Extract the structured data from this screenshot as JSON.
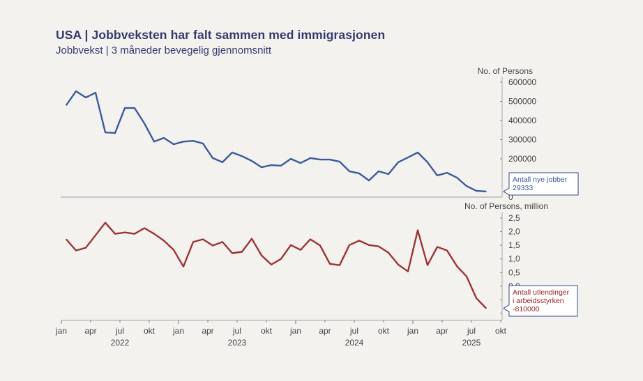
{
  "title": "USA | Jobbveksten har falt sammen med immigrasjonen",
  "subtitle": "Jobbvekst | 3 måneder bevegelig gjennomsnitt",
  "chart_data": [
    {
      "type": "line",
      "panel": "top",
      "ylabel": "No. of Persons",
      "ylim": [
        0,
        600000
      ],
      "yticks": [
        0,
        200000,
        300000,
        400000,
        500000,
        600000
      ],
      "ytick_labels": [
        "0",
        "200000",
        "300000",
        "400000",
        "500000",
        "600000"
      ],
      "color": "#3a5a99",
      "series": [
        {
          "name": "Antall nye jobber",
          "start": "2022-01",
          "values": [
            480000,
            553000,
            520000,
            545000,
            338000,
            335000,
            465000,
            465000,
            385000,
            290000,
            309000,
            276000,
            290000,
            294000,
            280000,
            204000,
            182000,
            233000,
            214000,
            189000,
            156000,
            167000,
            164000,
            200000,
            178000,
            204000,
            196000,
            196000,
            185000,
            135000,
            124000,
            87000,
            135000,
            120000,
            182000,
            207000,
            233000,
            182000,
            113000,
            127000,
            102000,
            58000,
            33000,
            29333
          ]
        }
      ],
      "annotation": {
        "lines": [
          "Antall nye jobber",
          "29333"
        ],
        "color": "#3a5a99"
      }
    },
    {
      "type": "line",
      "panel": "bottom",
      "ylabel": "No. of Persons, million",
      "ylim": [
        -1.0,
        2.5
      ],
      "yticks": [
        -1.0,
        -0.5,
        0.0,
        0.5,
        1.0,
        1.5,
        2.0,
        2.5
      ],
      "ytick_labels": [
        "",
        "",
        "0,0",
        "0,5",
        "1,0",
        "1,5",
        "2,0",
        "2,5"
      ],
      "color": "#9b3535",
      "series": [
        {
          "name": "Antall utlendinger i arbeidsstyrken",
          "start": "2022-01",
          "values": [
            1.72,
            1.31,
            1.41,
            1.87,
            2.33,
            1.92,
            1.97,
            1.92,
            2.13,
            1.92,
            1.67,
            1.33,
            0.72,
            1.62,
            1.72,
            1.49,
            1.62,
            1.21,
            1.26,
            1.74,
            1.13,
            0.79,
            1.0,
            1.51,
            1.33,
            1.72,
            1.49,
            0.82,
            0.77,
            1.51,
            1.67,
            1.51,
            1.46,
            1.23,
            0.79,
            0.54,
            2.05,
            0.77,
            1.44,
            1.31,
            0.74,
            0.36,
            -0.44,
            -0.81
          ]
        }
      ],
      "annotation": {
        "lines": [
          "Antall utlendinger",
          "i arbeidsstyrken",
          "-810000"
        ],
        "color": "#9b2020"
      }
    }
  ],
  "xaxis": {
    "month_labels": [
      "jan",
      "apr",
      "jul",
      "okt",
      "jan",
      "apr",
      "jul",
      "okt",
      "jan",
      "apr",
      "jul",
      "okt",
      "jan",
      "apr",
      "jul",
      "okt"
    ],
    "year_labels": [
      "2022",
      "2023",
      "2024",
      "2025"
    ],
    "range": [
      "2022-01",
      "2025-10"
    ]
  }
}
